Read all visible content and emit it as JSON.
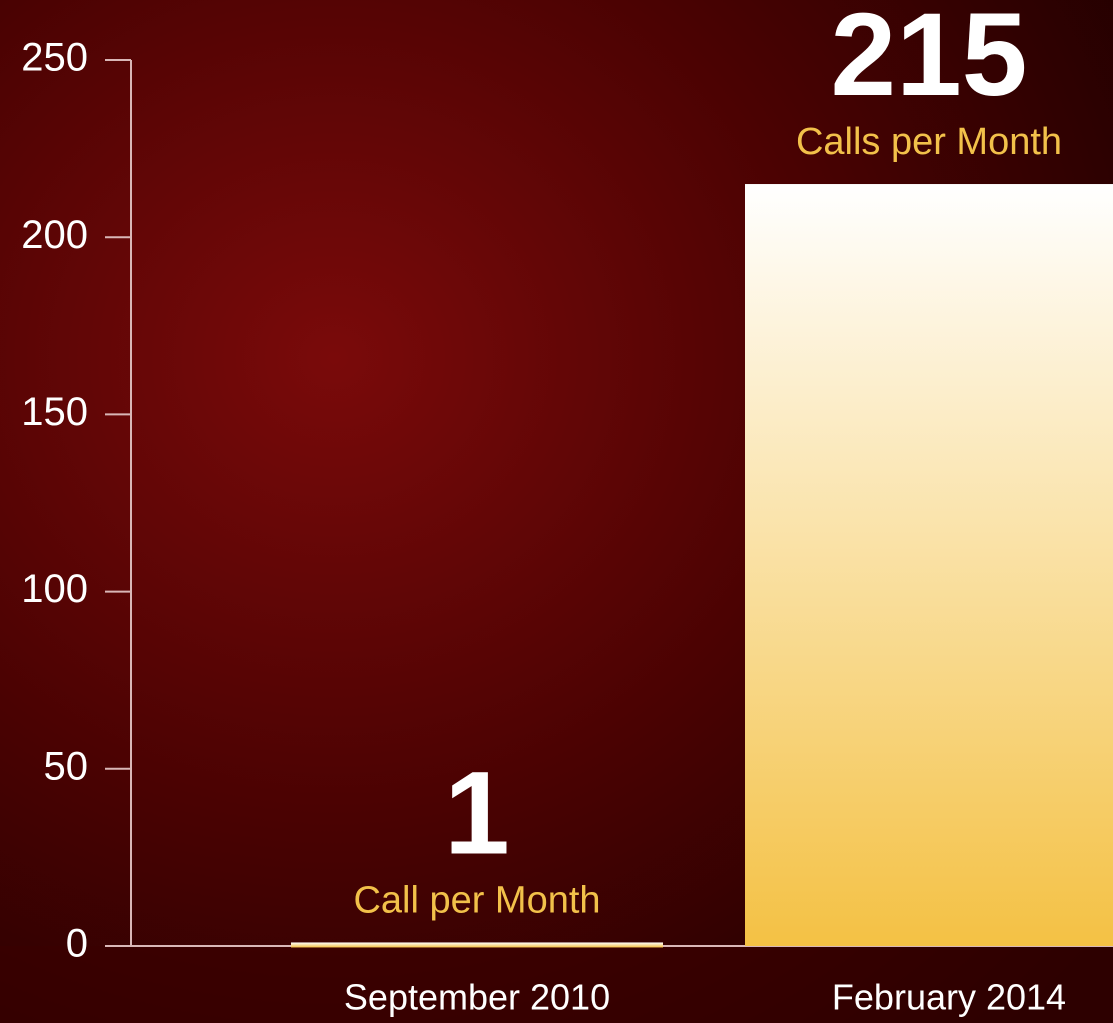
{
  "chart_data": {
    "type": "bar",
    "categories": [
      "September 2010",
      "February 2014"
    ],
    "values": [
      1,
      215
    ],
    "annotations": [
      "Call per Month",
      "Calls per Month"
    ],
    "color": "#f4c144",
    "ylim": [
      0,
      250
    ],
    "yticks": [
      0,
      50,
      100,
      150,
      200,
      250
    ]
  }
}
